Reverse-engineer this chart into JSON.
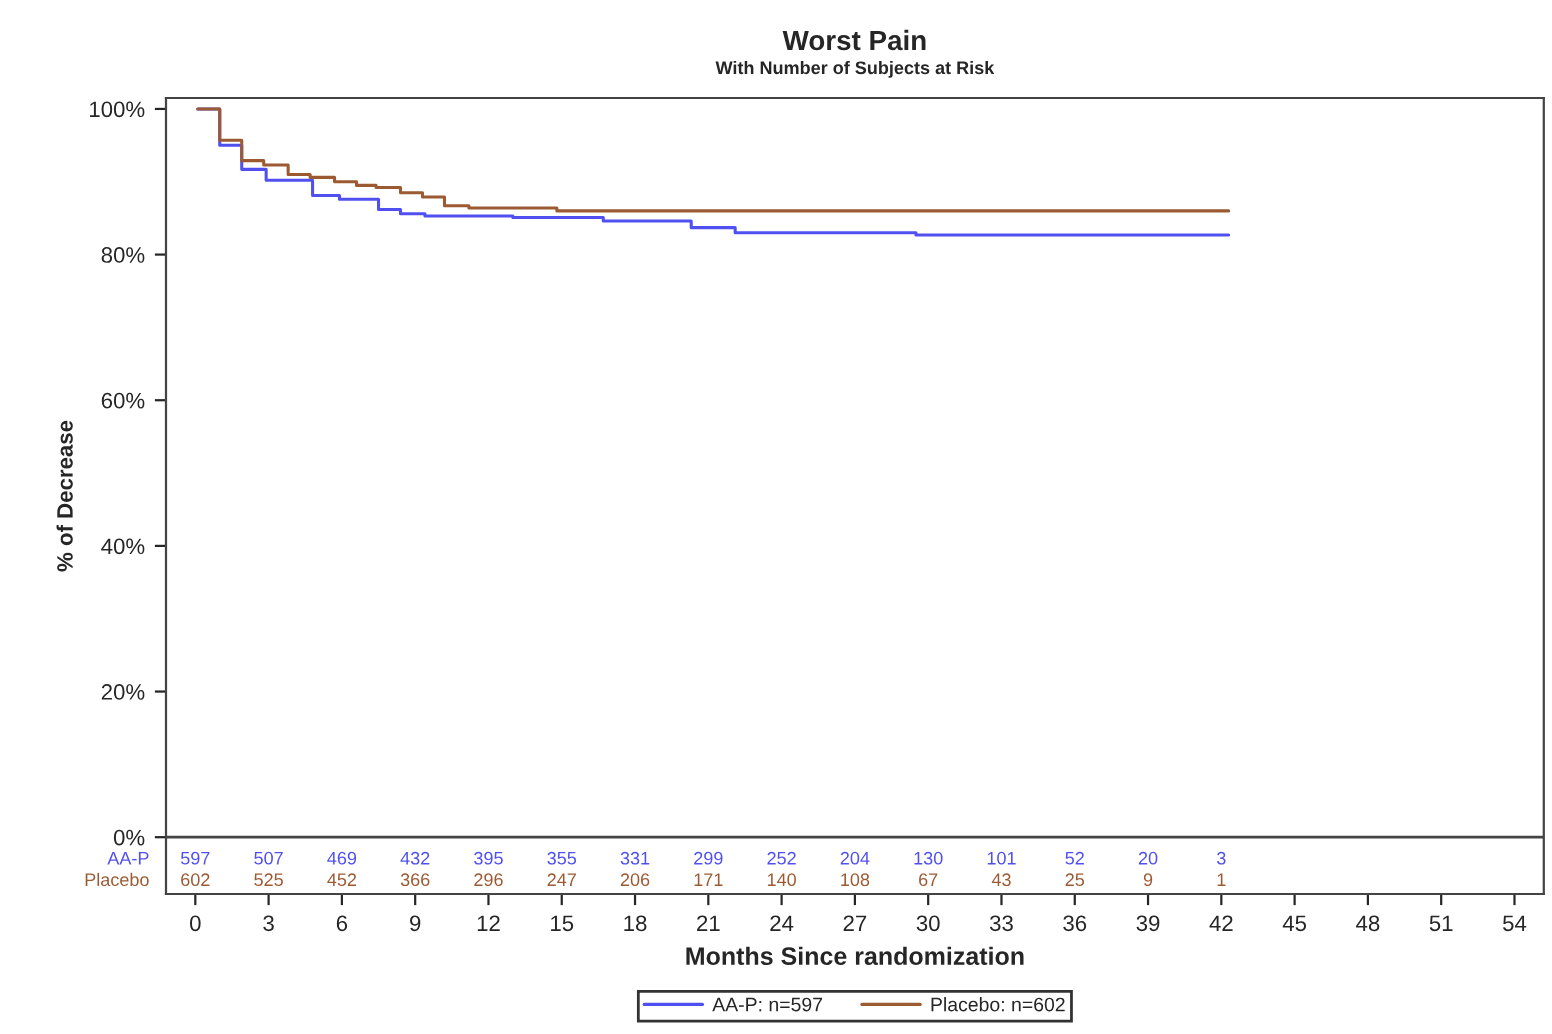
{
  "chart_data": {
    "type": "step",
    "title": "Worst Pain",
    "subtitle": "With Number of Subjects at Risk",
    "xlabel": "Months Since randomization",
    "ylabel": "% of Decrease",
    "xlim": [
      -1.2,
      55.2
    ],
    "xticks": [
      0,
      3,
      6,
      9,
      12,
      15,
      18,
      21,
      24,
      27,
      30,
      33,
      36,
      39,
      42,
      45,
      48,
      51,
      54
    ],
    "ylim": [
      -7.8,
      101.5
    ],
    "yticks": [
      {
        "value": 0,
        "label": "0%"
      },
      {
        "value": 20,
        "label": "20%"
      },
      {
        "value": 40,
        "label": "40%"
      },
      {
        "value": 60,
        "label": "60%"
      },
      {
        "value": 80,
        "label": "80%"
      },
      {
        "value": 100,
        "label": "100%"
      }
    ],
    "legend": "bottom",
    "ref_lines": [
      {
        "axis": "y",
        "value": 0,
        "color": "#444444"
      }
    ],
    "series": [
      {
        "name": "AA-P: n=597",
        "color": "#5050f0",
        "x": [
          0.1,
          1.0,
          1.9,
          2.9,
          4.8,
          5.9,
          7.5,
          8.4,
          9.4,
          13.0,
          16.7,
          20.3,
          22.1,
          29.5,
          42.3
        ],
        "values": [
          100,
          95.0,
          91.7,
          90.2,
          88.1,
          87.6,
          86.2,
          85.6,
          85.3,
          85.1,
          84.6,
          83.7,
          83.0,
          82.7,
          82.7
        ]
      },
      {
        "name": "Placebo: n=602",
        "color": "#9c5a33",
        "x": [
          0.1,
          1.0,
          1.9,
          2.8,
          3.8,
          4.7,
          5.7,
          6.6,
          7.4,
          8.4,
          9.3,
          10.2,
          11.2,
          14.8,
          42.3
        ],
        "values": [
          100,
          95.7,
          92.9,
          92.3,
          91.0,
          90.6,
          90.0,
          89.5,
          89.2,
          88.5,
          87.9,
          86.7,
          86.4,
          86.0,
          86.0
        ]
      }
    ],
    "annotations": [
      "AA-P",
      "597",
      "507",
      "469",
      "432",
      "395",
      "355",
      "331",
      "299",
      "252",
      "204",
      "130",
      "101",
      "52",
      "20",
      "3",
      "Placebo",
      "602",
      "525",
      "452",
      "366",
      "296",
      "247",
      "206",
      "171",
      "140",
      "108",
      "67",
      "43",
      "25",
      "9",
      "1"
    ]
  }
}
